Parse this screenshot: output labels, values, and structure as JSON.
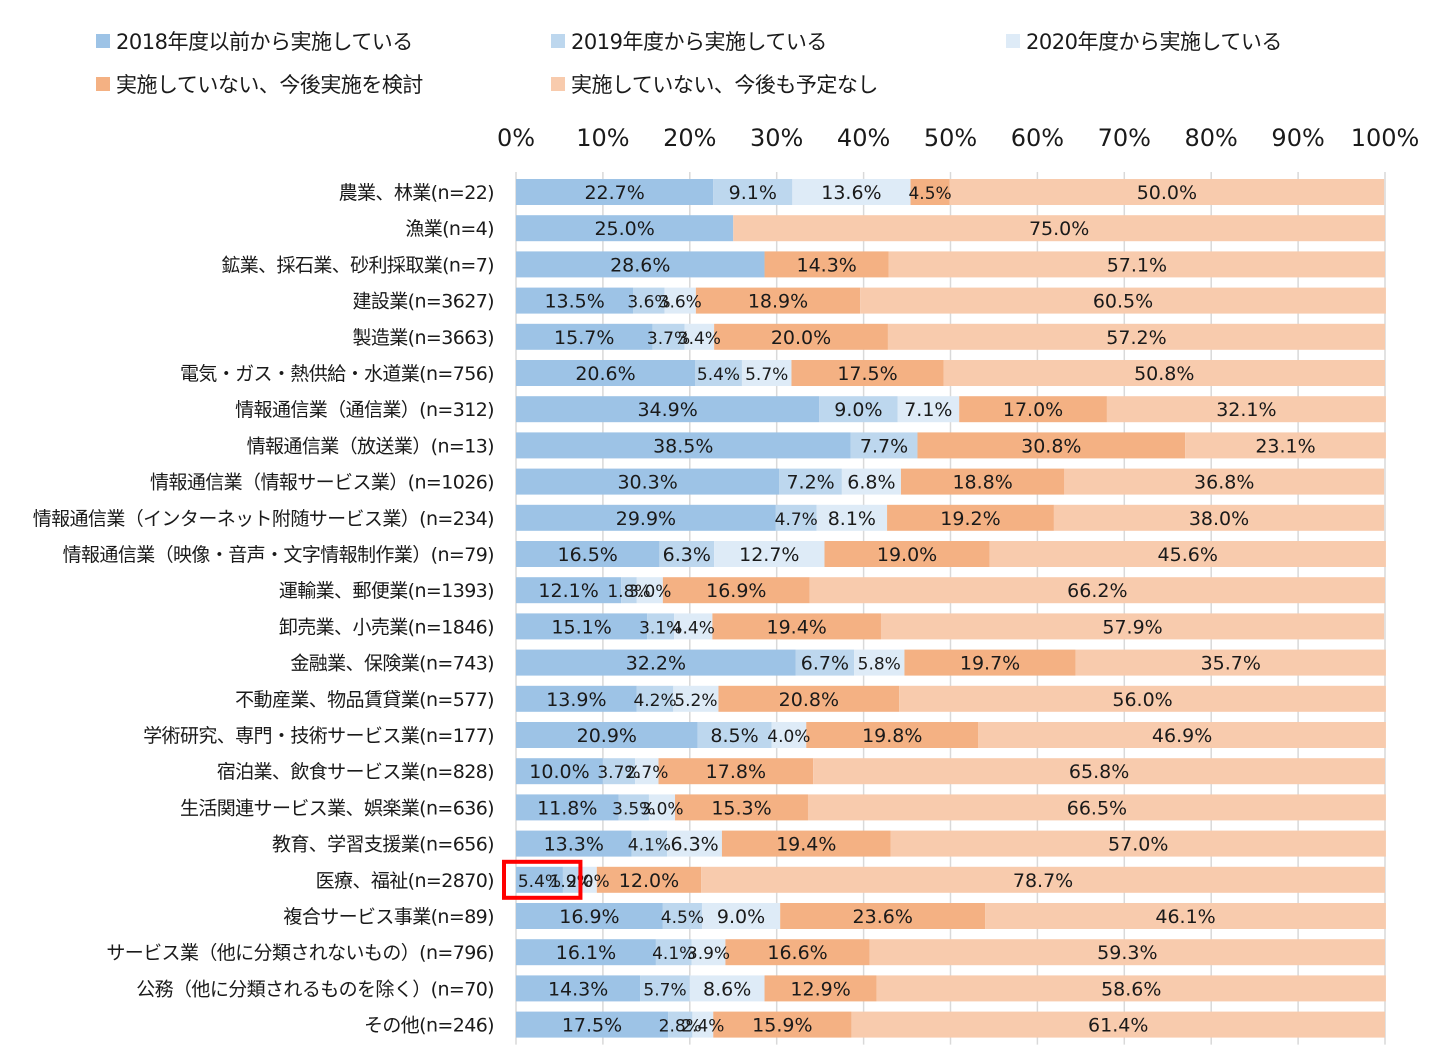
{
  "chart_data": {
    "type": "bar",
    "orientation": "horizontal",
    "stacked": "percent",
    "title": "",
    "xlabel": "",
    "ylabel": "",
    "xlim": [
      0,
      100
    ],
    "x_ticks": [
      "0%",
      "10%",
      "20%",
      "30%",
      "40%",
      "50%",
      "60%",
      "70%",
      "80%",
      "90%",
      "100%"
    ],
    "grid": "vertical",
    "legend_position": "top",
    "categories": [
      "農業、林業(n=22)",
      "漁業(n=4)",
      "鉱業、採石業、砂利採取業(n=7)",
      "建設業(n=3627)",
      "製造業(n=3663)",
      "電気・ガス・熱供給・水道業(n=756)",
      "情報通信業（通信業）(n=312)",
      "情報通信業（放送業）(n=13)",
      "情報通信業（情報サービス業）(n=1026)",
      "情報通信業（インターネット附随サービス業）(n=234)",
      "情報通信業（映像・音声・文字情報制作業）(n=79)",
      "運輸業、郵便業(n=1393)",
      "卸売業、小売業(n=1846)",
      "金融業、保険業(n=743)",
      "不動産業、物品賃貸業(n=577)",
      "学術研究、専門・技術サービス業(n=177)",
      "宿泊業、飲食サービス業(n=828)",
      "生活関連サービス業、娯楽業(n=636)",
      "教育、学習支援業(n=656)",
      "医療、福祉(n=2870)",
      "複合サービス事業(n=89)",
      "サービス業（他に分類されないもの）(n=796)",
      "公務（他に分類されるものを除く）(n=70)",
      "その他(n=246)"
    ],
    "series": [
      {
        "name": "2018年度以前から実施している",
        "color": "#9dc3e6",
        "values": [
          22.7,
          25.0,
          28.6,
          13.5,
          15.7,
          20.6,
          34.9,
          38.5,
          30.3,
          29.9,
          16.5,
          12.1,
          15.1,
          32.2,
          13.9,
          20.9,
          10.0,
          11.8,
          13.3,
          5.4,
          16.9,
          16.1,
          14.3,
          17.5
        ]
      },
      {
        "name": "2019年度から実施している",
        "color": "#bdd7ee",
        "values": [
          9.1,
          0,
          0,
          3.6,
          3.7,
          5.4,
          9.0,
          7.7,
          7.2,
          4.7,
          6.3,
          1.8,
          3.1,
          6.7,
          4.2,
          8.5,
          3.7,
          3.5,
          4.1,
          1.9,
          4.5,
          4.1,
          5.7,
          2.8
        ]
      },
      {
        "name": "2020年度から実施している",
        "color": "#deebf7",
        "values": [
          13.6,
          0,
          0,
          3.6,
          3.4,
          5.7,
          7.1,
          0,
          6.8,
          8.1,
          12.7,
          3.0,
          4.4,
          5.8,
          5.2,
          4.0,
          2.7,
          3.0,
          6.3,
          2.0,
          9.0,
          3.9,
          8.6,
          2.4
        ]
      },
      {
        "name": "実施していない、今後実施を検討",
        "color": "#f4b183",
        "values": [
          4.5,
          0,
          14.3,
          18.9,
          20.0,
          17.5,
          17.0,
          30.8,
          18.8,
          19.2,
          19.0,
          16.9,
          19.4,
          19.7,
          20.8,
          19.8,
          17.8,
          15.3,
          19.4,
          12.0,
          23.6,
          16.6,
          12.9,
          15.9
        ]
      },
      {
        "name": "実施していない、今後も予定なし",
        "color": "#f8cbad",
        "values": [
          50.0,
          75.0,
          57.1,
          60.5,
          57.2,
          50.8,
          32.1,
          23.1,
          36.8,
          38.0,
          45.6,
          66.2,
          57.9,
          35.7,
          56.0,
          46.9,
          65.8,
          66.5,
          57.0,
          78.7,
          46.1,
          59.3,
          58.6,
          61.4
        ]
      }
    ],
    "annotations": [
      {
        "type": "highlight-box",
        "category": "医療、福祉(n=2870)",
        "series": [
          "2018年度以前から実施している",
          "2019年度から実施している"
        ],
        "color": "#ff0000"
      }
    ]
  }
}
